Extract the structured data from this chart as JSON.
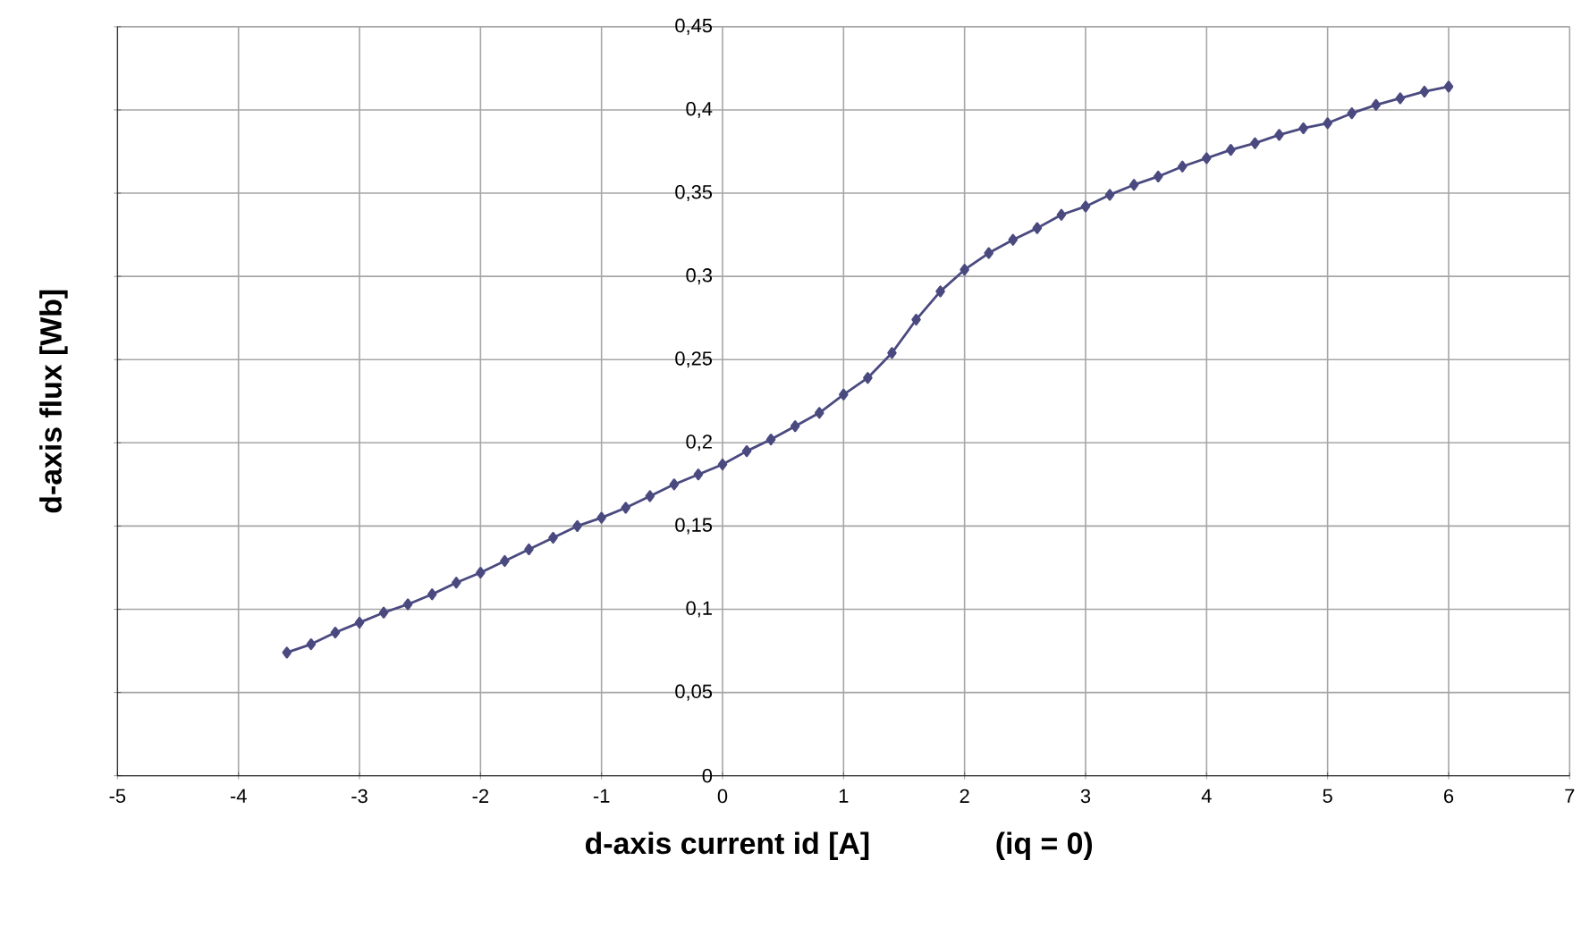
{
  "chart_data": {
    "type": "line",
    "xlabel": "d-axis current id [A]",
    "ylabel": "d-axis flux [Wb]",
    "annotations": [
      "(iq = 0)"
    ],
    "x": [
      -3.6,
      -3.4,
      -3.2,
      -3.0,
      -2.8,
      -2.6,
      -2.4,
      -2.2,
      -2.0,
      -1.8,
      -1.6,
      -1.4,
      -1.2,
      -1.0,
      -0.8,
      -0.6,
      -0.4,
      -0.2,
      0,
      0.2,
      0.4,
      0.6,
      0.8,
      1.0,
      1.2,
      1.4,
      1.6,
      1.8,
      2.0,
      2.2,
      2.4,
      2.6,
      2.8,
      3.0,
      3.2,
      3.4,
      3.6,
      3.8,
      4.0,
      4.2,
      4.4,
      4.6,
      4.8,
      5.0,
      5.2,
      5.4,
      5.6,
      5.8,
      6.0
    ],
    "series": [
      {
        "color": "#4a4a80",
        "values": [
          0.074,
          0.079,
          0.086,
          0.092,
          0.098,
          0.103,
          0.109,
          0.116,
          0.122,
          0.129,
          0.136,
          0.143,
          0.15,
          0.155,
          0.161,
          0.168,
          0.175,
          0.181,
          0.187,
          0.195,
          0.202,
          0.21,
          0.218,
          0.229,
          0.239,
          0.254,
          0.274,
          0.291,
          0.304,
          0.314,
          0.322,
          0.329,
          0.337,
          0.342,
          0.349,
          0.355,
          0.36,
          0.366,
          0.371,
          0.376,
          0.38,
          0.385,
          0.389,
          0.392,
          0.398,
          0.403,
          0.407,
          0.411,
          0.414
        ]
      }
    ],
    "xlim": [
      -5,
      7
    ],
    "xticks": [
      -5,
      -4,
      -3,
      -2,
      -1,
      0,
      1,
      2,
      3,
      4,
      5,
      6,
      7
    ],
    "ylim": [
      0,
      0.45
    ],
    "yticks": [
      0,
      {
        "value": 0.05,
        "label": "0,05"
      },
      {
        "value": 0.1,
        "label": "0,1"
      },
      {
        "value": 0.15,
        "label": "0,15"
      },
      {
        "value": 0.2,
        "label": "0,2"
      },
      {
        "value": 0.25,
        "label": "0,25"
      },
      {
        "value": 0.3,
        "label": "0,3"
      },
      {
        "value": 0.35,
        "label": "0,35"
      },
      {
        "value": 0.4,
        "label": "0,4"
      },
      {
        "value": 0.45,
        "label": "0,45"
      }
    ],
    "grid": true,
    "marker": "diamond",
    "line_style": "solid"
  }
}
